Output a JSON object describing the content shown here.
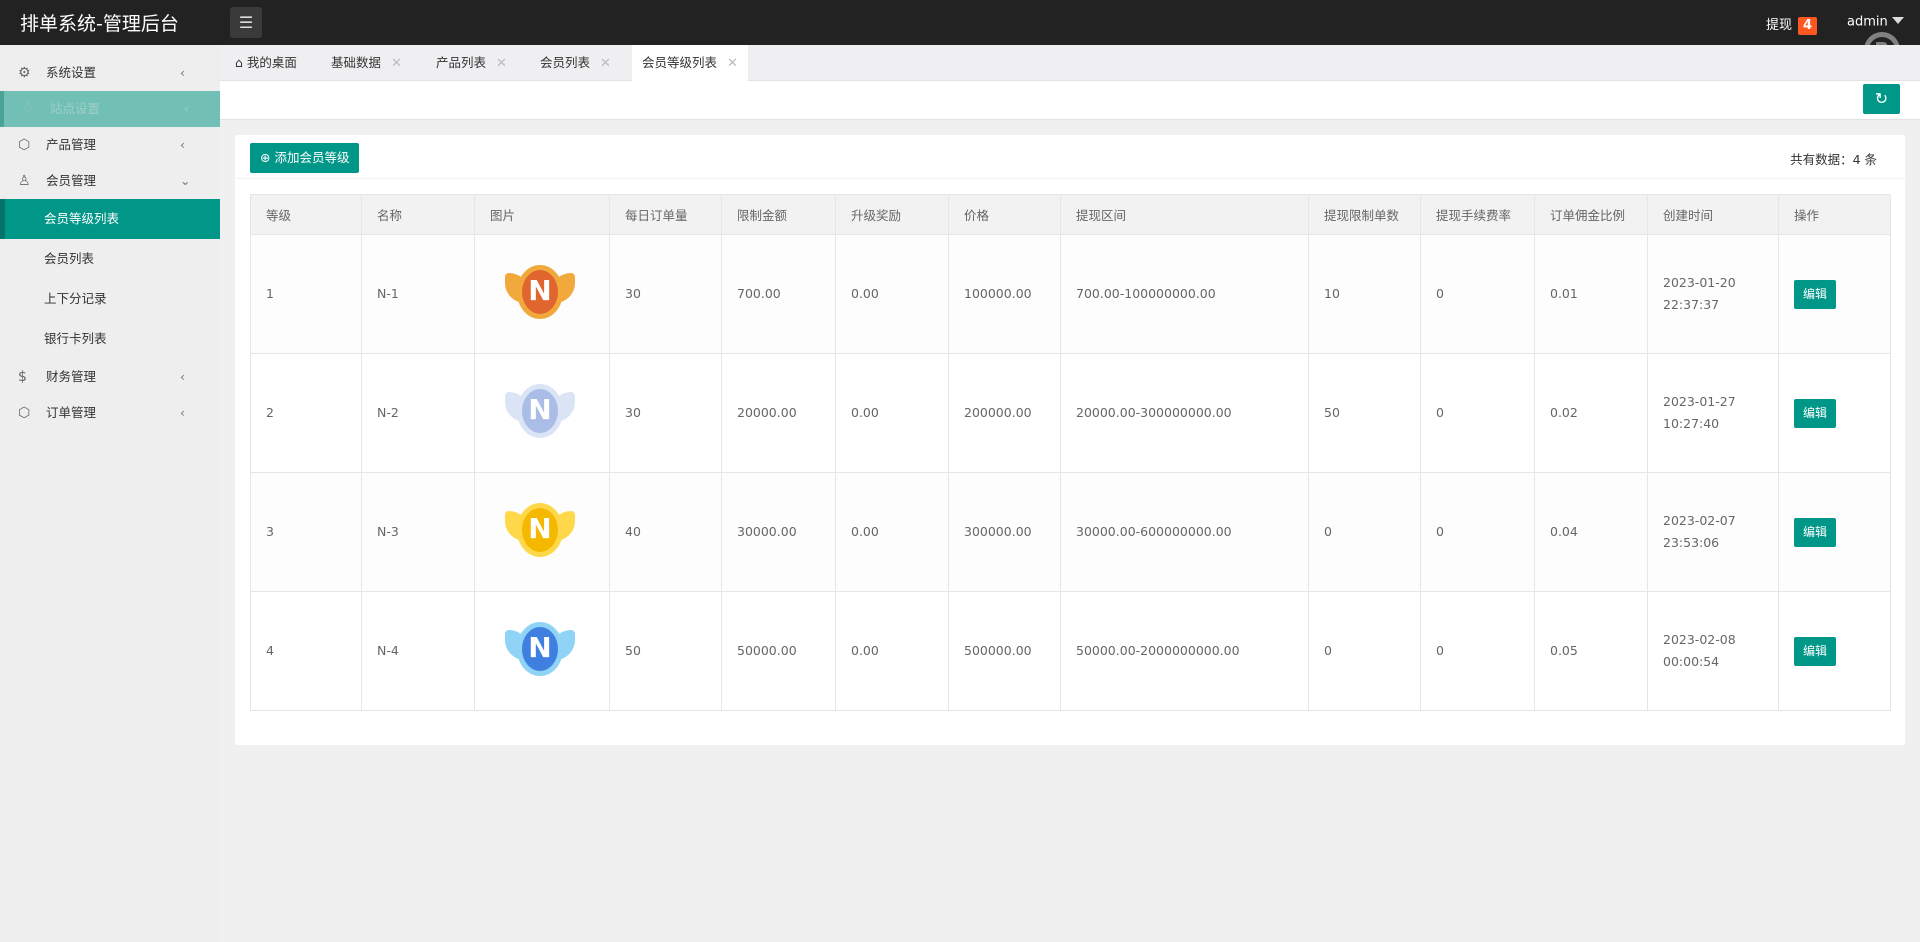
{
  "header": {
    "title": "排单系统-管理后台",
    "withdraw_label": "提现",
    "withdraw_count": "4",
    "user": "admin"
  },
  "sidebar": {
    "items": [
      {
        "label": "系统设置",
        "icon": "gear-icon"
      },
      {
        "label": "站点设置",
        "icon": "bell-icon"
      },
      {
        "label": "产品管理",
        "icon": "box-icon"
      },
      {
        "label": "会员管理",
        "icon": "user-icon"
      },
      {
        "label": "财务管理",
        "icon": "dollar-icon"
      },
      {
        "label": "订单管理",
        "icon": "box-icon"
      }
    ],
    "sub": [
      "会员等级列表",
      "会员列表",
      "上下分记录",
      "银行卡列表"
    ]
  },
  "tabs": [
    "我的桌面",
    "基础数据",
    "产品列表",
    "会员列表",
    "会员等级列表"
  ],
  "toolbar": {
    "add_label": "添加会员等级",
    "total": "共有数据：4 条"
  },
  "table": {
    "headers": [
      "等级",
      "名称",
      "图片",
      "每日订单量",
      "限制金额",
      "升级奖励",
      "价格",
      "提现区间",
      "提现限制单数",
      "提现手续费率",
      "订单佣金比例",
      "创建时间",
      "操作"
    ],
    "rows": [
      [
        "1",
        "N-1",
        "",
        "30",
        "700.00",
        "0.00",
        "100000.00",
        "700.00-100000000.00",
        "10",
        "0",
        "0.01",
        "2023-01-20 22:37:37",
        "编辑"
      ],
      [
        "2",
        "N-2",
        "",
        "30",
        "20000.00",
        "0.00",
        "200000.00",
        "20000.00-300000000.00",
        "50",
        "0",
        "0.02",
        "2023-01-27 10:27:40",
        "编辑"
      ],
      [
        "3",
        "N-3",
        "",
        "40",
        "30000.00",
        "0.00",
        "300000.00",
        "30000.00-600000000.00",
        "0",
        "0",
        "0.04",
        "2023-02-07 23:53:06",
        "编辑"
      ],
      [
        "4",
        "N-4",
        "",
        "50",
        "50000.00",
        "0.00",
        "500000.00",
        "50000.00-2000000000.00",
        "0",
        "0",
        "0.05",
        "2023-02-08 00:00:54",
        "编辑"
      ]
    ]
  },
  "medal_colors": [
    [
      "#e0652f",
      "#f2a93b"
    ],
    [
      "#a9bde6",
      "#dbe4f5"
    ],
    [
      "#f5b800",
      "#ffd84a"
    ],
    [
      "#3f7fe0",
      "#8fd3f7"
    ]
  ],
  "colors": {
    "accent": "#009688",
    "badge": "#ff5722"
  }
}
